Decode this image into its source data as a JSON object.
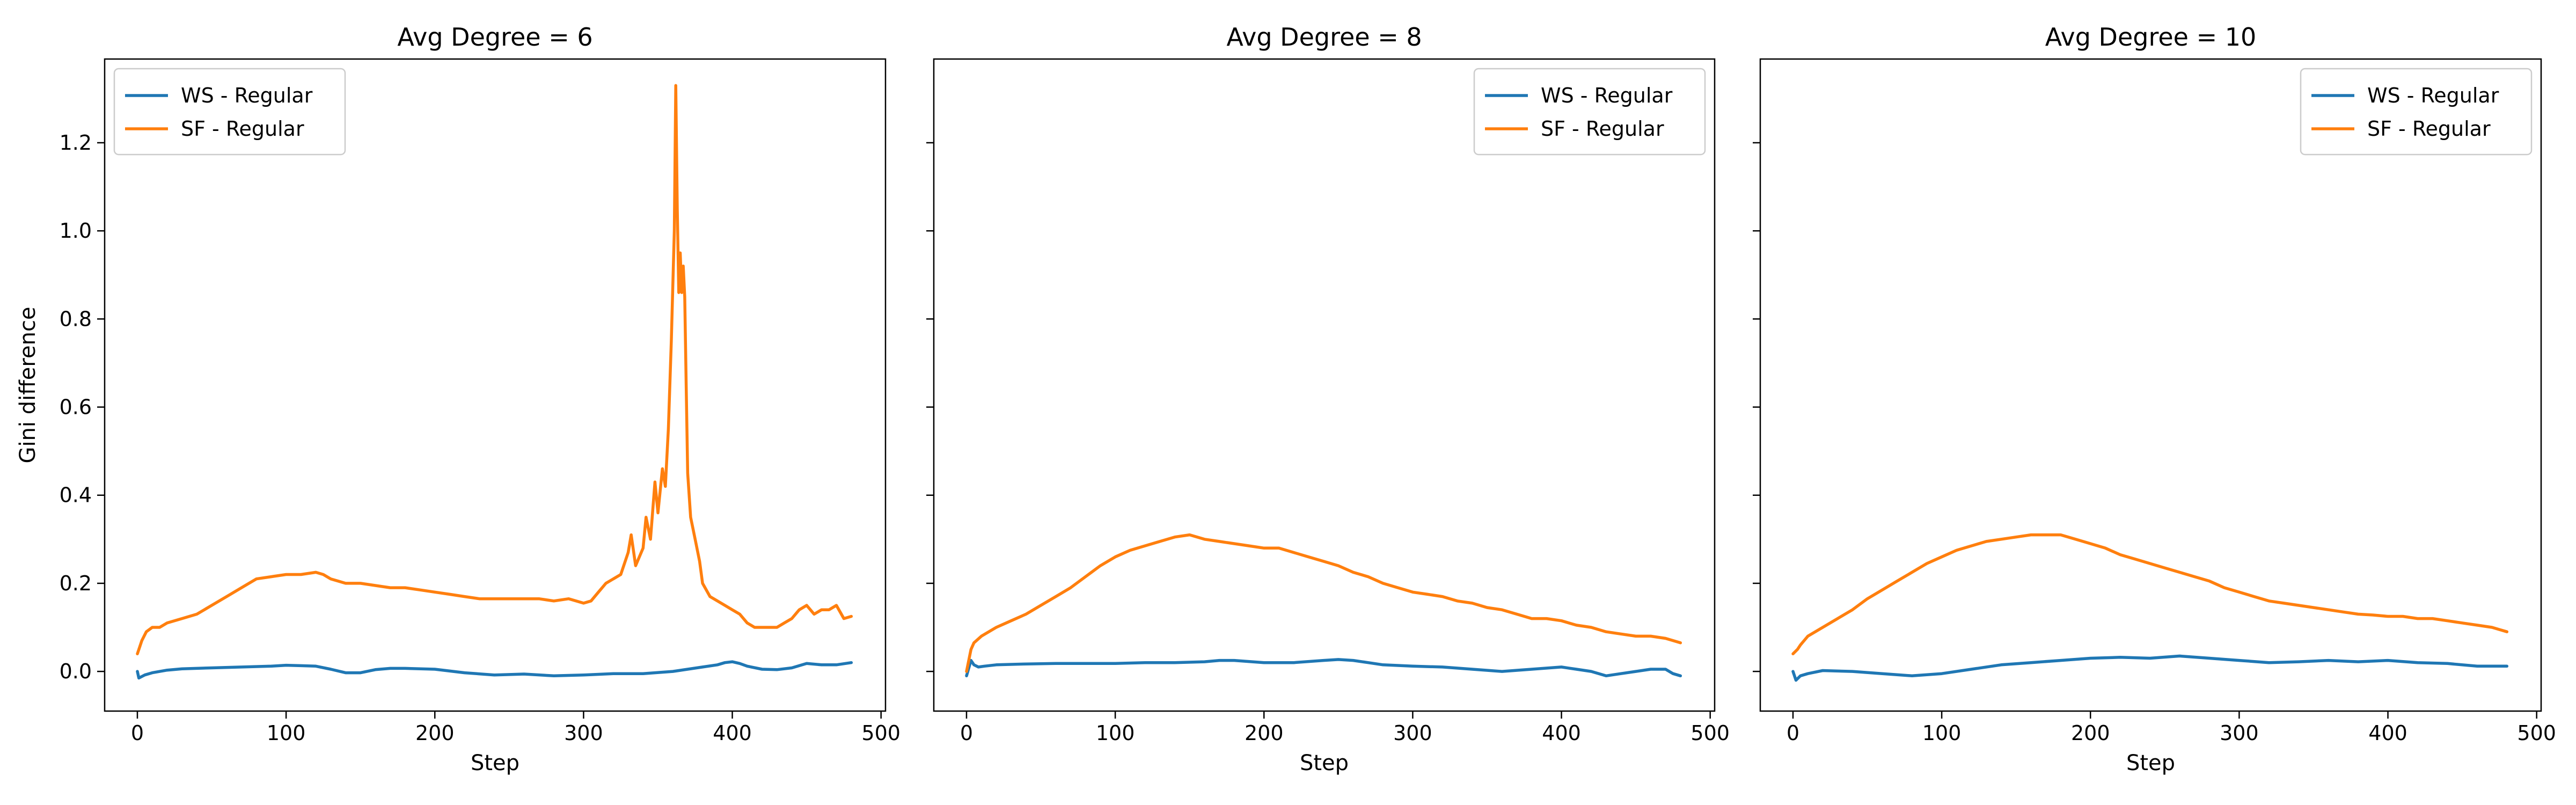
{
  "chart_data": [
    {
      "type": "line",
      "title": "Avg Degree = 6",
      "xlabel": "Step",
      "ylabel": "Gini difference",
      "xlim": [
        -22,
        503
      ],
      "ylim": [
        -0.09,
        1.39
      ],
      "xticks": [
        0,
        100,
        200,
        300,
        400,
        500
      ],
      "yticks": [
        0.0,
        0.2,
        0.4,
        0.6,
        0.8,
        1.0,
        1.2
      ],
      "legend_position": "upper-left",
      "grid": false,
      "series": [
        {
          "name": "WS - Regular",
          "color": "#1f77b4",
          "x": [
            0,
            1,
            5,
            10,
            20,
            30,
            50,
            70,
            90,
            100,
            110,
            120,
            130,
            140,
            150,
            160,
            170,
            180,
            200,
            220,
            240,
            260,
            280,
            300,
            320,
            340,
            360,
            370,
            380,
            390,
            395,
            400,
            405,
            410,
            420,
            430,
            440,
            450,
            460,
            470,
            480
          ],
          "y": [
            0.0,
            -0.015,
            -0.008,
            -0.003,
            0.003,
            0.006,
            0.008,
            0.01,
            0.012,
            0.014,
            0.013,
            0.012,
            0.005,
            -0.003,
            -0.003,
            0.004,
            0.007,
            0.007,
            0.005,
            -0.003,
            -0.008,
            -0.006,
            -0.01,
            -0.008,
            -0.005,
            -0.005,
            0.0,
            0.005,
            0.01,
            0.015,
            0.02,
            0.022,
            0.018,
            0.012,
            0.005,
            0.004,
            0.008,
            0.018,
            0.015,
            0.015,
            0.02
          ]
        },
        {
          "name": "SF - Regular",
          "color": "#ff7f0e",
          "x": [
            0,
            3,
            6,
            10,
            15,
            20,
            30,
            40,
            50,
            60,
            70,
            80,
            90,
            100,
            110,
            120,
            125,
            130,
            140,
            150,
            160,
            170,
            180,
            190,
            200,
            210,
            220,
            230,
            240,
            250,
            260,
            270,
            280,
            290,
            300,
            305,
            310,
            315,
            320,
            325,
            330,
            332,
            335,
            340,
            342,
            345,
            348,
            350,
            353,
            355,
            357,
            359,
            361,
            362,
            363,
            364,
            365,
            366,
            367,
            368,
            369,
            370,
            372,
            375,
            378,
            380,
            385,
            390,
            395,
            400,
            405,
            410,
            415,
            420,
            425,
            430,
            435,
            440,
            445,
            450,
            455,
            460,
            465,
            470,
            475,
            480
          ],
          "y": [
            0.04,
            0.07,
            0.09,
            0.1,
            0.1,
            0.11,
            0.12,
            0.13,
            0.15,
            0.17,
            0.19,
            0.21,
            0.215,
            0.22,
            0.22,
            0.225,
            0.22,
            0.21,
            0.2,
            0.2,
            0.195,
            0.19,
            0.19,
            0.185,
            0.18,
            0.175,
            0.17,
            0.165,
            0.165,
            0.165,
            0.165,
            0.165,
            0.16,
            0.165,
            0.155,
            0.16,
            0.18,
            0.2,
            0.21,
            0.22,
            0.27,
            0.31,
            0.24,
            0.28,
            0.35,
            0.3,
            0.43,
            0.36,
            0.46,
            0.42,
            0.55,
            0.75,
            1.0,
            1.33,
            1.05,
            0.86,
            0.95,
            0.86,
            0.92,
            0.85,
            0.65,
            0.45,
            0.35,
            0.3,
            0.25,
            0.2,
            0.17,
            0.16,
            0.15,
            0.14,
            0.13,
            0.11,
            0.1,
            0.1,
            0.1,
            0.1,
            0.11,
            0.12,
            0.14,
            0.15,
            0.13,
            0.14,
            0.14,
            0.15,
            0.12,
            0.125
          ]
        }
      ]
    },
    {
      "type": "line",
      "title": "Avg Degree = 8",
      "xlabel": "Step",
      "ylabel": "",
      "xlim": [
        -22,
        503
      ],
      "ylim": [
        -0.09,
        1.39
      ],
      "xticks": [
        0,
        100,
        200,
        300,
        400,
        500
      ],
      "yticks": [
        0.0,
        0.2,
        0.4,
        0.6,
        0.8,
        1.0,
        1.2
      ],
      "legend_position": "upper-right",
      "grid": false,
      "series": [
        {
          "name": "WS - Regular",
          "color": "#1f77b4",
          "x": [
            0,
            3,
            5,
            8,
            12,
            20,
            40,
            60,
            80,
            100,
            120,
            140,
            160,
            170,
            180,
            200,
            220,
            240,
            250,
            260,
            270,
            280,
            300,
            320,
            340,
            360,
            380,
            400,
            410,
            420,
            430,
            440,
            450,
            460,
            470,
            475,
            480
          ],
          "y": [
            -0.01,
            0.025,
            0.015,
            0.01,
            0.012,
            0.015,
            0.017,
            0.018,
            0.018,
            0.018,
            0.02,
            0.02,
            0.022,
            0.025,
            0.025,
            0.02,
            0.02,
            0.025,
            0.027,
            0.025,
            0.02,
            0.015,
            0.012,
            0.01,
            0.005,
            0.0,
            0.005,
            0.01,
            0.005,
            0.0,
            -0.01,
            -0.005,
            0.0,
            0.005,
            0.005,
            -0.005,
            -0.01
          ]
        },
        {
          "name": "SF - Regular",
          "color": "#ff7f0e",
          "x": [
            0,
            3,
            5,
            10,
            20,
            30,
            40,
            50,
            60,
            70,
            80,
            90,
            100,
            110,
            120,
            130,
            140,
            150,
            160,
            170,
            180,
            190,
            200,
            210,
            220,
            230,
            240,
            250,
            260,
            270,
            280,
            290,
            300,
            310,
            320,
            330,
            340,
            350,
            360,
            370,
            380,
            390,
            400,
            410,
            420,
            430,
            440,
            450,
            460,
            470,
            475,
            480
          ],
          "y": [
            0.0,
            0.05,
            0.065,
            0.08,
            0.1,
            0.115,
            0.13,
            0.15,
            0.17,
            0.19,
            0.215,
            0.24,
            0.26,
            0.275,
            0.285,
            0.295,
            0.305,
            0.31,
            0.3,
            0.295,
            0.29,
            0.285,
            0.28,
            0.28,
            0.27,
            0.26,
            0.25,
            0.24,
            0.225,
            0.215,
            0.2,
            0.19,
            0.18,
            0.175,
            0.17,
            0.16,
            0.155,
            0.145,
            0.14,
            0.13,
            0.12,
            0.12,
            0.115,
            0.105,
            0.1,
            0.09,
            0.085,
            0.08,
            0.08,
            0.075,
            0.07,
            0.065
          ]
        }
      ]
    },
    {
      "type": "line",
      "title": "Avg Degree = 10",
      "xlabel": "Step",
      "ylabel": "",
      "xlim": [
        -22,
        503
      ],
      "ylim": [
        -0.09,
        1.39
      ],
      "xticks": [
        0,
        100,
        200,
        300,
        400,
        500
      ],
      "yticks": [
        0.0,
        0.2,
        0.4,
        0.6,
        0.8,
        1.0,
        1.2
      ],
      "legend_position": "upper-right",
      "grid": false,
      "series": [
        {
          "name": "WS - Regular",
          "color": "#1f77b4",
          "x": [
            0,
            2,
            5,
            10,
            20,
            40,
            60,
            80,
            100,
            120,
            140,
            160,
            180,
            200,
            220,
            240,
            260,
            280,
            300,
            320,
            340,
            360,
            380,
            400,
            420,
            440,
            460,
            470,
            480
          ],
          "y": [
            0.0,
            -0.02,
            -0.01,
            -0.005,
            0.002,
            0.0,
            -0.005,
            -0.01,
            -0.005,
            0.005,
            0.015,
            0.02,
            0.025,
            0.03,
            0.032,
            0.03,
            0.035,
            0.03,
            0.025,
            0.02,
            0.022,
            0.025,
            0.022,
            0.025,
            0.02,
            0.018,
            0.012,
            0.012,
            0.012
          ]
        },
        {
          "name": "SF - Regular",
          "color": "#ff7f0e",
          "x": [
            0,
            3,
            5,
            10,
            20,
            30,
            40,
            50,
            60,
            70,
            80,
            90,
            100,
            110,
            120,
            130,
            140,
            150,
            160,
            170,
            180,
            190,
            200,
            210,
            220,
            230,
            240,
            250,
            260,
            270,
            280,
            290,
            300,
            310,
            320,
            330,
            340,
            350,
            360,
            370,
            380,
            390,
            400,
            410,
            420,
            430,
            440,
            450,
            460,
            470,
            475,
            480
          ],
          "y": [
            0.04,
            0.05,
            0.06,
            0.08,
            0.1,
            0.12,
            0.14,
            0.165,
            0.185,
            0.205,
            0.225,
            0.245,
            0.26,
            0.275,
            0.285,
            0.295,
            0.3,
            0.305,
            0.31,
            0.31,
            0.31,
            0.3,
            0.29,
            0.28,
            0.265,
            0.255,
            0.245,
            0.235,
            0.225,
            0.215,
            0.205,
            0.19,
            0.18,
            0.17,
            0.16,
            0.155,
            0.15,
            0.145,
            0.14,
            0.135,
            0.13,
            0.128,
            0.125,
            0.125,
            0.12,
            0.12,
            0.115,
            0.11,
            0.105,
            0.1,
            0.095,
            0.09
          ]
        }
      ]
    }
  ]
}
